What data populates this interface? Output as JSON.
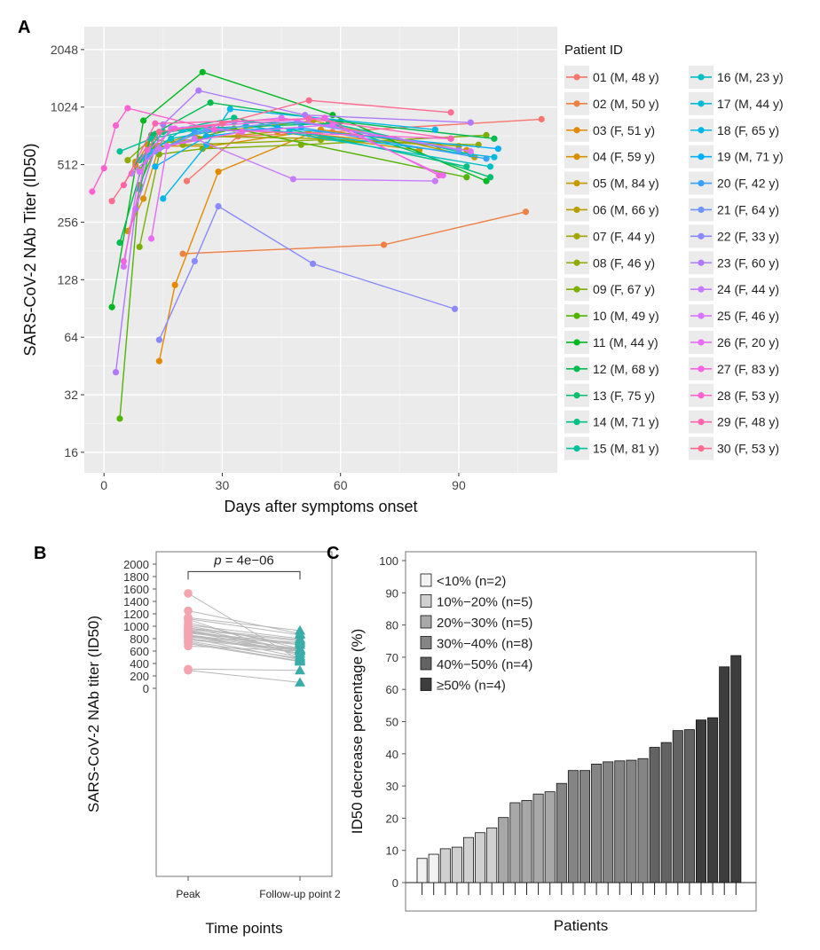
{
  "chart_data": [
    {
      "panel_label": "A",
      "type": "line",
      "xlabel": "Days after symptoms onset",
      "ylabel": "SARS-CoV-2 NAb Titer (ID50)",
      "y_scale": "log2",
      "xlim": [
        -5,
        115
      ],
      "ylim": [
        12.5,
        2700
      ],
      "xticks": [
        0,
        30,
        60,
        90
      ],
      "yticks": [
        16,
        32,
        64,
        128,
        256,
        512,
        1024,
        2048
      ],
      "background": "#ebebeb",
      "grid": true,
      "legend_title": "Patient ID",
      "legend_position": "right",
      "series": [
        {
          "name": "01 (M, 48 y)",
          "color": "#F8766D",
          "points": [
            [
              21,
              420
            ],
            [
              34,
              720
            ],
            [
              58,
              760
            ],
            [
              111,
              885
            ]
          ]
        },
        {
          "name": "02 (M, 50 y)",
          "color": "#EE8044",
          "points": [
            [
              20,
              175
            ],
            [
              71,
              195
            ],
            [
              107,
              290
            ]
          ]
        },
        {
          "name": "03 (F, 51 y)",
          "color": "#E38900",
          "points": [
            [
              14,
              48
            ],
            [
              18,
              120
            ],
            [
              29,
              470
            ],
            [
              52,
              740
            ],
            [
              85,
              640
            ]
          ]
        },
        {
          "name": "04 (F, 59 y)",
          "color": "#D89000",
          "points": [
            [
              6,
              230
            ],
            [
              10,
              340
            ],
            [
              14,
              640
            ],
            [
              27,
              640
            ],
            [
              55,
              780
            ],
            [
              92,
              610
            ]
          ]
        },
        {
          "name": "05 (M, 84 y)",
          "color": "#C49A00",
          "points": [
            [
              8,
              510
            ],
            [
              11,
              650
            ],
            [
              24,
              700
            ],
            [
              44,
              760
            ],
            [
              80,
              610
            ]
          ]
        },
        {
          "name": "06 (M, 66 y)",
          "color": "#B79F00",
          "points": [
            [
              8,
              530
            ],
            [
              13,
              640
            ],
            [
              23,
              740
            ],
            [
              53,
              870
            ],
            [
              94,
              560
            ]
          ]
        },
        {
          "name": "07 (F, 44 y)",
          "color": "#A3A500",
          "points": [
            [
              9,
              480
            ],
            [
              13,
              610
            ],
            [
              26,
              720
            ],
            [
              55,
              700
            ],
            [
              90,
              640
            ]
          ]
        },
        {
          "name": "08 (F, 46 y)",
          "color": "#8FAA00",
          "points": [
            [
              6,
              540
            ],
            [
              12,
              700
            ],
            [
              20,
              650
            ],
            [
              55,
              690
            ],
            [
              95,
              650
            ]
          ]
        },
        {
          "name": "09 (F, 67 y)",
          "color": "#7CAE00",
          "points": [
            [
              9,
              190
            ],
            [
              14,
              580
            ],
            [
              25,
              620
            ],
            [
              50,
              650
            ],
            [
              97,
              730
            ]
          ]
        },
        {
          "name": "10 (M, 49 y)",
          "color": "#53B400",
          "points": [
            [
              4,
              24
            ],
            [
              9,
              400
            ],
            [
              13,
              620
            ],
            [
              33,
              790
            ],
            [
              92,
              440
            ]
          ]
        },
        {
          "name": "11 (M, 44 y)",
          "color": "#00B81F",
          "points": [
            [
              2,
              92
            ],
            [
              10,
              870
            ],
            [
              25,
              1560
            ],
            [
              58,
              930
            ],
            [
              97,
              420
            ]
          ]
        },
        {
          "name": "12 (M, 68 y)",
          "color": "#00BB4E",
          "points": [
            [
              4,
              200
            ],
            [
              12,
              730
            ],
            [
              27,
              1080
            ],
            [
              60,
              860
            ],
            [
              99,
              700
            ]
          ]
        },
        {
          "name": "13 (F, 75 y)",
          "color": "#00BE6C",
          "points": [
            [
              9,
              380
            ],
            [
              13,
              740
            ],
            [
              22,
              790
            ],
            [
              57,
              840
            ],
            [
              98,
              440
            ]
          ]
        },
        {
          "name": "14 (M, 71 y)",
          "color": "#00C086",
          "points": [
            [
              9,
              540
            ],
            [
              15,
              760
            ],
            [
              33,
              900
            ],
            [
              92,
              500
            ]
          ]
        },
        {
          "name": "15 (M, 81 y)",
          "color": "#00C19C",
          "points": [
            [
              4,
              600
            ],
            [
              12,
              700
            ],
            [
              33,
              860
            ],
            [
              59,
              830
            ],
            [
              93,
              580
            ]
          ]
        },
        {
          "name": "16 (M, 23 y)",
          "color": "#00BFC4",
          "points": [
            [
              10,
              560
            ],
            [
              17,
              700
            ],
            [
              36,
              820
            ],
            [
              98,
              500
            ]
          ]
        },
        {
          "name": "17 (M, 44 y)",
          "color": "#00BCD8",
          "points": [
            [
              12,
              600
            ],
            [
              20,
              780
            ],
            [
              47,
              760
            ],
            [
              99,
              560
            ]
          ]
        },
        {
          "name": "18 (F, 65 y)",
          "color": "#00B8E7",
          "points": [
            [
              15,
              340
            ],
            [
              26,
              650
            ],
            [
              32,
              1000
            ],
            [
              84,
              780
            ]
          ]
        },
        {
          "name": "19 (M, 71 y)",
          "color": "#00B0F6",
          "points": [
            [
              13,
              500
            ],
            [
              26,
              720
            ],
            [
              44,
              800
            ],
            [
              100,
              620
            ]
          ]
        },
        {
          "name": "20 (F, 42 y)",
          "color": "#35A2FF",
          "points": [
            [
              11,
              560
            ],
            [
              23,
              760
            ],
            [
              50,
              800
            ],
            [
              97,
              550
            ]
          ]
        },
        {
          "name": "21 (F, 64 y)",
          "color": "#6E96FF",
          "points": [
            [
              13,
              600
            ],
            [
              26,
              780
            ],
            [
              49,
              860
            ],
            [
              90,
              610
            ]
          ]
        },
        {
          "name": "22 (F, 33 y)",
          "color": "#8A89FF",
          "points": [
            [
              14,
              62
            ],
            [
              23,
              160
            ],
            [
              29,
              310
            ],
            [
              53,
              155
            ],
            [
              89,
              90
            ]
          ]
        },
        {
          "name": "23 (F, 60 y)",
          "color": "#AF7AFF",
          "points": [
            [
              3,
              42
            ],
            [
              8,
              300
            ],
            [
              15,
              830
            ],
            [
              24,
              1250
            ],
            [
              51,
              930
            ],
            [
              93,
              850
            ]
          ]
        },
        {
          "name": "24 (F, 44 y)",
          "color": "#C77CFF",
          "points": [
            [
              7,
              460
            ],
            [
              14,
              620
            ],
            [
              23,
              700
            ],
            [
              48,
              430
            ],
            [
              84,
              420
            ]
          ]
        },
        {
          "name": "25 (F, 46 y)",
          "color": "#D874FD",
          "points": [
            [
              5,
              150
            ],
            [
              9,
              470
            ],
            [
              17,
              790
            ],
            [
              45,
              900
            ],
            [
              93,
              600
            ]
          ]
        },
        {
          "name": "26 (F, 20 y)",
          "color": "#E76BF3",
          "points": [
            [
              12,
              210
            ],
            [
              16,
              640
            ],
            [
              35,
              760
            ],
            [
              58,
              830
            ],
            [
              86,
              450
            ]
          ]
        },
        {
          "name": "27 (F, 83 y)",
          "color": "#F564E3",
          "points": [
            [
              5,
              160
            ],
            [
              11,
              610
            ],
            [
              18,
              790
            ],
            [
              56,
              900
            ],
            [
              85,
              450
            ]
          ]
        },
        {
          "name": "28 (F, 53 y)",
          "color": "#FD61D1",
          "points": [
            [
              -3,
              370
            ],
            [
              0,
              490
            ],
            [
              3,
              820
            ],
            [
              6,
              1010
            ],
            [
              28,
              780
            ],
            [
              88,
              700
            ]
          ]
        },
        {
          "name": "29 (F, 48 y)",
          "color": "#FF64B0",
          "points": [
            [
              5,
              400
            ],
            [
              13,
              840
            ],
            [
              52,
              890
            ],
            [
              88,
              700
            ]
          ]
        },
        {
          "name": "30 (F, 53 y)",
          "color": "#FF6C91",
          "points": [
            [
              2,
              330
            ],
            [
              14,
              760
            ],
            [
              30,
              840
            ],
            [
              52,
              1110
            ],
            [
              88,
              960
            ]
          ]
        }
      ]
    },
    {
      "panel_label": "B",
      "type": "scatter",
      "xlabel": "Time points",
      "ylabel": "SARS-CoV-2 NAb titer (ID50)",
      "categories": [
        "Peak",
        "Follow-up point 2"
      ],
      "ylim": [
        0,
        2000
      ],
      "yticks": [
        0,
        200,
        400,
        600,
        800,
        1000,
        1200,
        1400,
        1600,
        1800,
        2000
      ],
      "annotation": "= 4e−06",
      "annotation_italic_prefix": "p",
      "peak_color": "#F4A4AE",
      "followup_color": "#3AADA8",
      "line_color": "#b8b8b8",
      "pairs": [
        [
          1530,
          450
        ],
        [
          1250,
          880
        ],
        [
          1140,
          930
        ],
        [
          1120,
          860
        ],
        [
          1110,
          520
        ],
        [
          1060,
          640
        ],
        [
          1020,
          800
        ],
        [
          1000,
          700
        ],
        [
          980,
          600
        ],
        [
          970,
          780
        ],
        [
          950,
          760
        ],
        [
          940,
          620
        ],
        [
          930,
          610
        ],
        [
          920,
          560
        ],
        [
          900,
          730
        ],
        [
          890,
          700
        ],
        [
          870,
          500
        ],
        [
          860,
          640
        ],
        [
          850,
          600
        ],
        [
          840,
          560
        ],
        [
          820,
          740
        ],
        [
          810,
          460
        ],
        [
          800,
          620
        ],
        [
          780,
          610
        ],
        [
          760,
          480
        ],
        [
          740,
          440
        ],
        [
          720,
          430
        ],
        [
          680,
          600
        ],
        [
          310,
          290
        ],
        [
          290,
          95
        ]
      ]
    },
    {
      "panel_label": "C",
      "type": "bar",
      "xlabel": "Patients",
      "ylabel": "ID50 decrease percentage (%)",
      "ylim": [
        0,
        100
      ],
      "yticks": [
        0,
        10,
        20,
        30,
        40,
        50,
        60,
        70,
        80,
        90,
        100
      ],
      "legend_position": "top-left",
      "legend": [
        {
          "label": "<10% (n=2)",
          "color": "#f2f2f2"
        },
        {
          "label": "10%−20% (n=5)",
          "color": "#d0d0d0"
        },
        {
          "label": "20%−30% (n=5)",
          "color": "#a8a8a8"
        },
        {
          "label": "30%−40% (n=8)",
          "color": "#858585"
        },
        {
          "label": "40%−50% (n=4)",
          "color": "#636363"
        },
        {
          "label": "≥50% (n=4)",
          "color": "#3d3d3d"
        }
      ],
      "values": [
        7.5,
        8.8,
        10.5,
        11,
        14,
        15.5,
        17,
        20.2,
        24.8,
        25.5,
        27.5,
        28.2,
        30.8,
        34.8,
        34.8,
        36.8,
        37.5,
        37.8,
        38,
        38.5,
        42,
        43.5,
        47.2,
        47.5,
        50.5,
        51.2,
        67,
        70.5
      ]
    }
  ]
}
